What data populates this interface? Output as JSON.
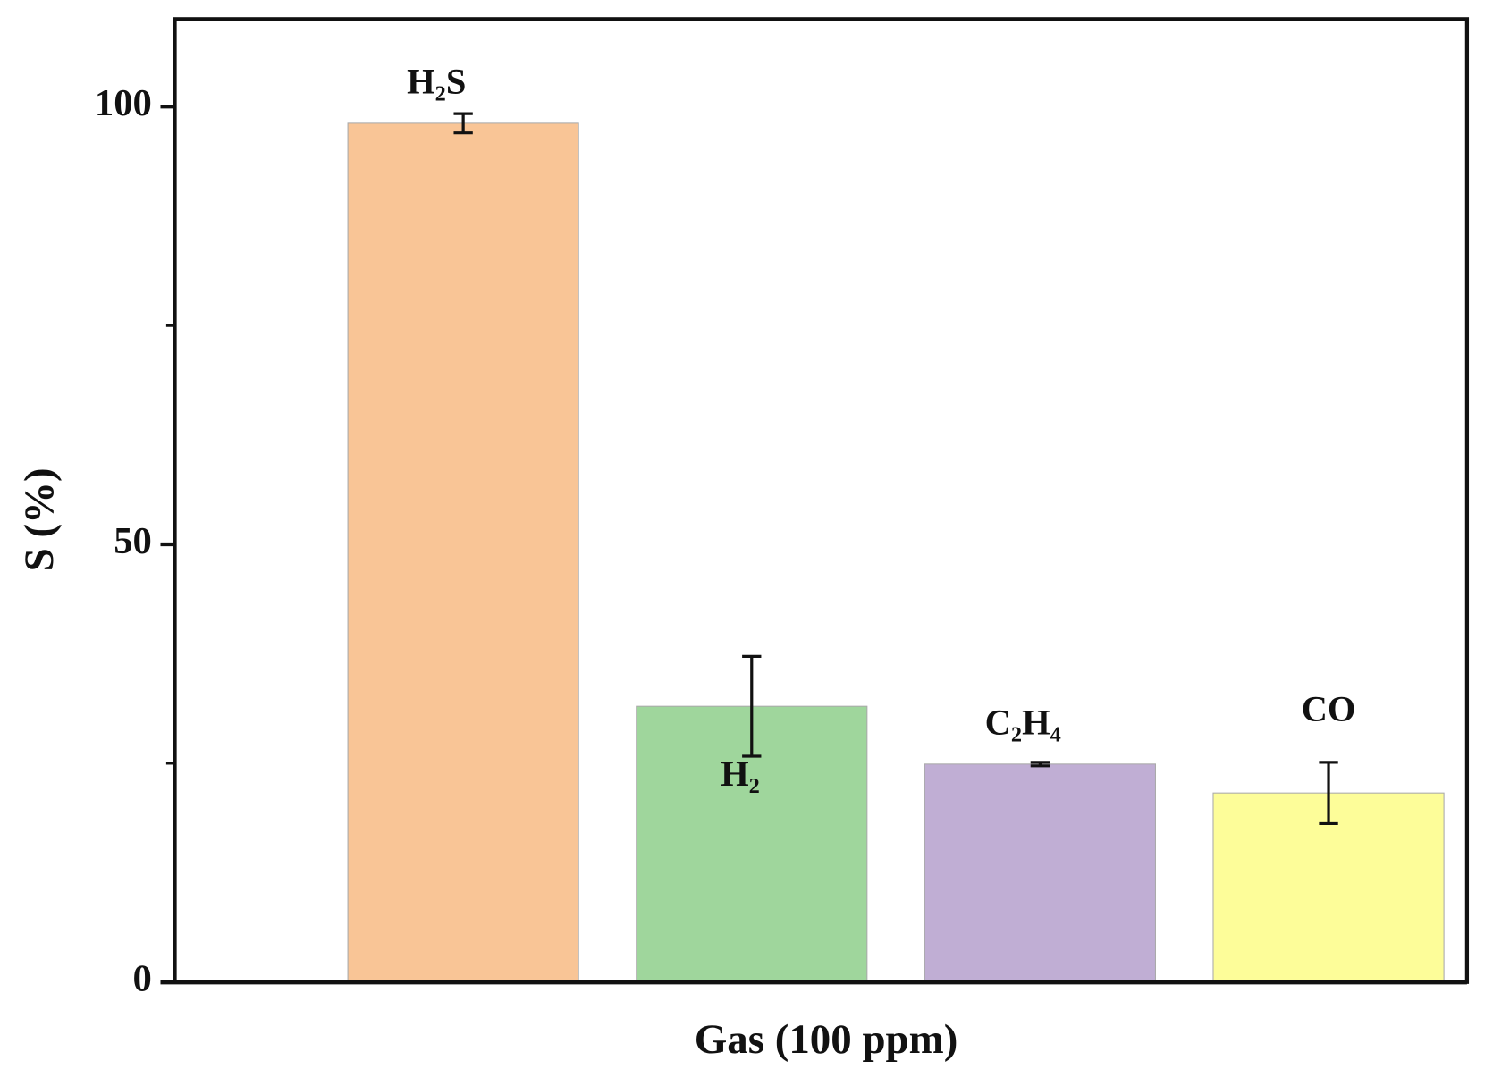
{
  "chart_data": {
    "type": "bar",
    "xlabel": "Gas (100 ppm)",
    "ylabel": "S (%)",
    "categories": [
      "H₂S",
      "H₂",
      "C₂H₄",
      "CO"
    ],
    "values": [
      98.1,
      31.5,
      24.9,
      21.6
    ],
    "errors": [
      1.1,
      5.7,
      0.2,
      3.5
    ],
    "colors": [
      "#f9c596",
      "#9fd69c",
      "#c0aed4",
      "#fdfd99"
    ],
    "ylim": [
      0,
      110
    ],
    "yticks": [
      0,
      50,
      100
    ],
    "minor_yticks": [
      25,
      75
    ]
  }
}
